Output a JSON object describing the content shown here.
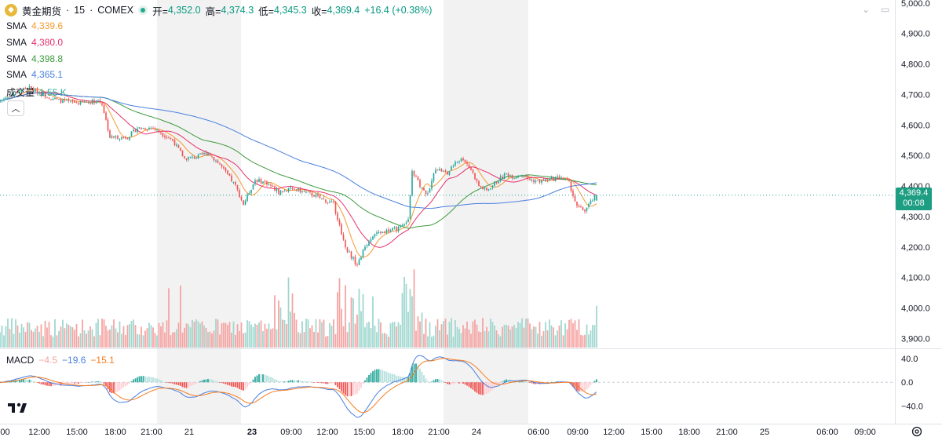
{
  "header": {
    "symbol": "黄金期货",
    "separator1": "·",
    "interval": "15",
    "separator2": "·",
    "exchange": "COMEX",
    "open_label": "开=",
    "open_value": "4,352.0",
    "high_label": "高=",
    "high_value": "4,374.3",
    "low_label": "低=",
    "low_value": "4,345.3",
    "close_label": "收=",
    "close_value": "4,369.4",
    "change": "+16.4 (+0.38%)"
  },
  "indicators": [
    {
      "name": "SMA",
      "value": "4,339.6",
      "color": "#f59a32"
    },
    {
      "name": "SMA",
      "value": "4,380.0",
      "color": "#e5306b"
    },
    {
      "name": "SMA",
      "value": "4,398.8",
      "color": "#3d9a3d"
    },
    {
      "name": "SMA",
      "value": "4,365.1",
      "color": "#4a7ee0"
    }
  ],
  "volume_legend": {
    "name": "成交量",
    "value": "1.55 K"
  },
  "macd_legend": {
    "name": "MACD",
    "hist": "−4.5",
    "macd": "−19.6",
    "signal": "−15.1"
  },
  "price_tag": {
    "price": "4,369.4",
    "countdown": "00:08"
  },
  "colors": {
    "up": "#26a69a",
    "down": "#ef5350",
    "up_vol": "#9ed6ce",
    "down_vol": "#f4a3a1",
    "macd": "#4a7ee0",
    "signal": "#f57c1f",
    "session_bg": "#f2f2f2"
  },
  "chart_data": {
    "type": "candlestick",
    "title": "黄金期货 · 15 · COMEX",
    "price_axis": {
      "ticks": [
        "5,000.0",
        "4,900.0",
        "4,800.0",
        "4,700.0",
        "4,600.0",
        "4,500.0",
        "4,400.0",
        "4,300.0",
        "4,200.0",
        "4,100.0",
        "4,000.0",
        "3,900.0"
      ],
      "range": [
        3870,
        5010
      ]
    },
    "macd_axis": {
      "ticks": [
        "40.0",
        "0.0",
        "−40.0"
      ],
      "range": [
        -62,
        52
      ]
    },
    "time_axis": {
      "ticks": [
        ":00",
        "12:00",
        "15:00",
        "18:00",
        "21:00",
        "21",
        "23",
        "09:00",
        "12:00",
        "15:00",
        "18:00",
        "21:00",
        "24",
        "06:00",
        "09:00",
        "12:00",
        "15:00",
        "18:00",
        "21:00",
        "25",
        "06:00",
        "09:00"
      ]
    },
    "close_keypoints": [
      [
        0,
        4680
      ],
      [
        8,
        4705
      ],
      [
        14,
        4725
      ],
      [
        22,
        4700
      ],
      [
        30,
        4680
      ],
      [
        40,
        4672
      ],
      [
        50,
        4680
      ],
      [
        52,
        4670
      ],
      [
        56,
        4560
      ],
      [
        65,
        4560
      ],
      [
        70,
        4590
      ],
      [
        78,
        4590
      ],
      [
        88,
        4550
      ],
      [
        94,
        4490
      ],
      [
        100,
        4495
      ],
      [
        106,
        4510
      ],
      [
        112,
        4470
      ],
      [
        120,
        4400
      ],
      [
        124,
        4340
      ],
      [
        130,
        4420
      ],
      [
        136,
        4410
      ],
      [
        142,
        4380
      ],
      [
        150,
        4390
      ],
      [
        160,
        4370
      ],
      [
        170,
        4340
      ],
      [
        176,
        4200
      ],
      [
        182,
        4140
      ],
      [
        186,
        4200
      ],
      [
        190,
        4240
      ],
      [
        195,
        4250
      ],
      [
        204,
        4262
      ],
      [
        208,
        4285
      ],
      [
        210,
        4450
      ],
      [
        214,
        4400
      ],
      [
        218,
        4370
      ],
      [
        222,
        4460
      ],
      [
        228,
        4440
      ],
      [
        232,
        4480
      ],
      [
        236,
        4490
      ],
      [
        240,
        4455
      ],
      [
        244,
        4400
      ],
      [
        248,
        4385
      ],
      [
        254,
        4420
      ],
      [
        258,
        4440
      ],
      [
        262,
        4430
      ],
      [
        266,
        4440
      ],
      [
        270,
        4420
      ],
      [
        274,
        4415
      ],
      [
        280,
        4420
      ],
      [
        286,
        4430
      ],
      [
        290,
        4410
      ],
      [
        294,
        4330
      ],
      [
        298,
        4320
      ],
      [
        302,
        4355
      ],
      [
        304,
        4369.4
      ]
    ],
    "volume": {
      "unit": "K",
      "last": 1.55
    },
    "sma_last": [
      4339.6,
      4380.0,
      4398.8,
      4365.1
    ],
    "macd_last": {
      "hist": -4.5,
      "macd": -19.6,
      "signal": -15.1
    }
  }
}
